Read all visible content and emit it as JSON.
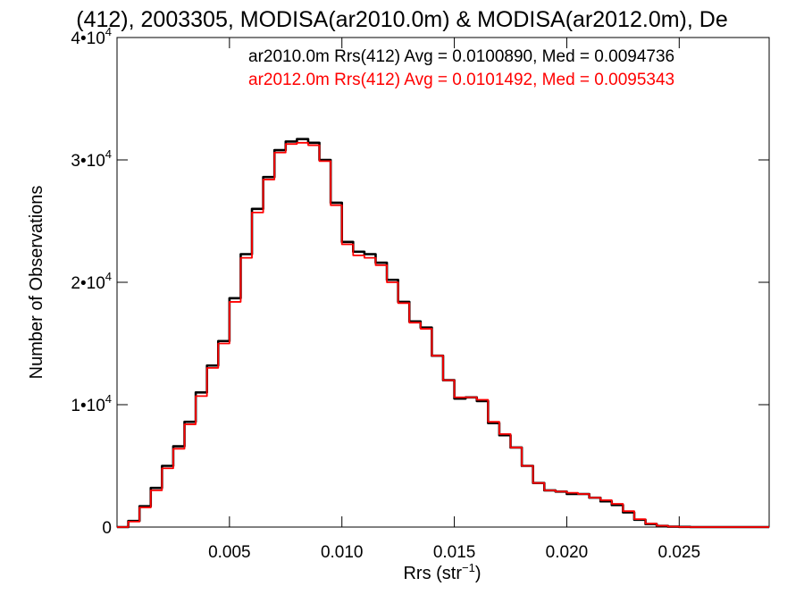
{
  "chart_data": {
    "type": "line",
    "title": "(412), 2003305, MODISA(ar2010.0m) & MODISA(ar2012.0m), De",
    "xlabel": "Rrs (str",
    "xlabel_exponent": "−1",
    "xlabel_close": ")",
    "ylabel": "Number of Observations",
    "xlim": [
      0.0,
      0.029
    ],
    "ylim": [
      0,
      40000
    ],
    "x_ticks": [
      {
        "value": 0.005,
        "label": "0.005"
      },
      {
        "value": 0.01,
        "label": "0.010"
      },
      {
        "value": 0.015,
        "label": "0.015"
      },
      {
        "value": 0.02,
        "label": "0.020"
      },
      {
        "value": 0.025,
        "label": "0.025"
      }
    ],
    "y_ticks": [
      {
        "value": 0,
        "mantissa": "0",
        "exponent": ""
      },
      {
        "value": 10000,
        "mantissa": "1•10",
        "exponent": "4"
      },
      {
        "value": 20000,
        "mantissa": "2•10",
        "exponent": "4"
      },
      {
        "value": 30000,
        "mantissa": "3•10",
        "exponent": "4"
      },
      {
        "value": 40000,
        "mantissa": "4•10",
        "exponent": "4"
      }
    ],
    "grid": false,
    "legend_position": "top-right",
    "series": [
      {
        "name": "ar2010.0m Rrs(412) Avg = 0.0100890, Med = 0.0094736",
        "color": "#000000",
        "x": [
          0.0,
          0.0005,
          0.001,
          0.0015,
          0.002,
          0.0025,
          0.003,
          0.0035,
          0.004,
          0.0045,
          0.005,
          0.0055,
          0.006,
          0.0065,
          0.007,
          0.0075,
          0.008,
          0.0085,
          0.009,
          0.0095,
          0.01,
          0.0105,
          0.011,
          0.0115,
          0.012,
          0.0125,
          0.013,
          0.0135,
          0.014,
          0.0145,
          0.015,
          0.0155,
          0.016,
          0.0165,
          0.017,
          0.0175,
          0.018,
          0.0185,
          0.019,
          0.0195,
          0.02,
          0.0205,
          0.021,
          0.0215,
          0.022,
          0.0225,
          0.023,
          0.0235,
          0.024,
          0.0245,
          0.025,
          0.0255,
          0.026,
          0.029
        ],
        "y": [
          0,
          500,
          1700,
          3200,
          5000,
          6600,
          8600,
          11000,
          13200,
          15200,
          18700,
          22300,
          26000,
          28600,
          30800,
          31500,
          31700,
          31400,
          30000,
          26500,
          23300,
          22500,
          22300,
          21600,
          20200,
          18400,
          16800,
          16300,
          14000,
          12000,
          10500,
          10600,
          10300,
          8500,
          7500,
          6500,
          5000,
          3600,
          3000,
          2900,
          2700,
          2700,
          2400,
          2100,
          1800,
          1200,
          600,
          250,
          100,
          30,
          10,
          0,
          0,
          0
        ]
      },
      {
        "name": "ar2012.0m Rrs(412) Avg = 0.0101492, Med = 0.0095343",
        "color": "#ff0000",
        "x": [
          0.0,
          0.0005,
          0.001,
          0.0015,
          0.002,
          0.0025,
          0.003,
          0.0035,
          0.004,
          0.0045,
          0.005,
          0.0055,
          0.006,
          0.0065,
          0.007,
          0.0075,
          0.008,
          0.0085,
          0.009,
          0.0095,
          0.01,
          0.0105,
          0.011,
          0.0115,
          0.012,
          0.0125,
          0.013,
          0.0135,
          0.014,
          0.0145,
          0.015,
          0.0155,
          0.016,
          0.0165,
          0.017,
          0.0175,
          0.018,
          0.0185,
          0.019,
          0.0195,
          0.02,
          0.0205,
          0.021,
          0.0215,
          0.022,
          0.0225,
          0.023,
          0.0235,
          0.024,
          0.0245,
          0.025,
          0.0255,
          0.026,
          0.029
        ],
        "y": [
          0,
          450,
          1600,
          3000,
          4800,
          6400,
          8400,
          10700,
          13000,
          15000,
          18400,
          22000,
          25700,
          28400,
          30600,
          31300,
          31400,
          31200,
          29900,
          26300,
          23100,
          22200,
          22000,
          21400,
          20000,
          18300,
          16700,
          16200,
          14000,
          12000,
          10600,
          10600,
          10400,
          8600,
          7600,
          6500,
          5000,
          3600,
          3000,
          2900,
          2800,
          2700,
          2400,
          2200,
          1900,
          1300,
          650,
          280,
          110,
          35,
          10,
          0,
          0,
          0
        ]
      }
    ]
  }
}
